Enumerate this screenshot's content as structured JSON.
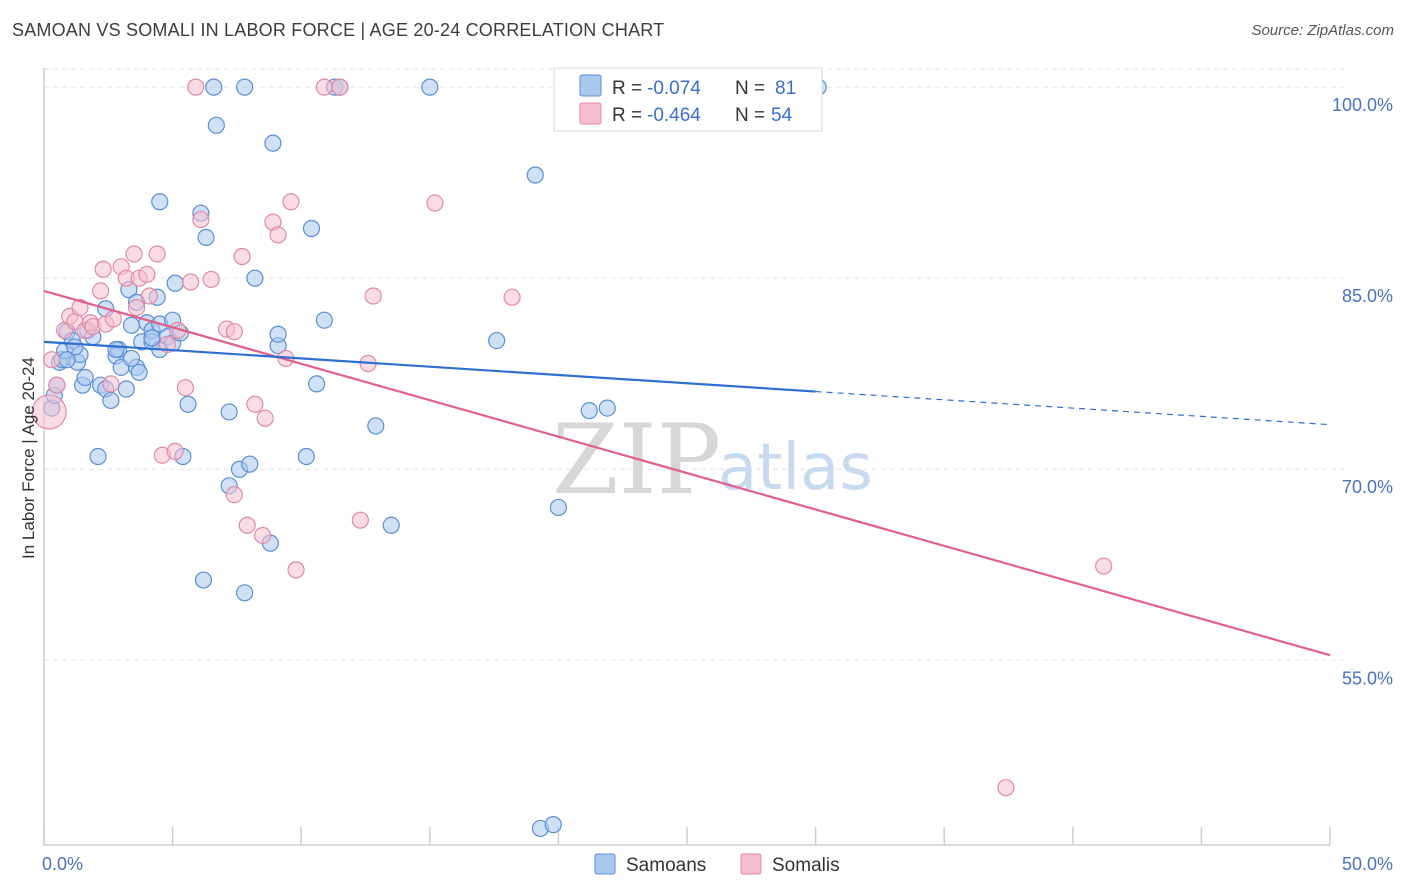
{
  "title": "SAMOAN VS SOMALI IN LABOR FORCE | AGE 20-24 CORRELATION CHART",
  "source": "Source: ZipAtlas.com",
  "watermark": {
    "zip": "ZIP",
    "atlas": "atlas"
  },
  "colors": {
    "samoans_fill": "#a9c8ee",
    "samoans_stroke": "#5b8ed6",
    "samoans_line": "#2f6fcf",
    "somalis_fill": "#f6bfd0",
    "somalis_stroke": "#e08aa6",
    "somalis_line": "#e0608e",
    "grid": "#e3e3e3",
    "axis_label": "#4a72c4"
  },
  "legend": {
    "rows": [
      {
        "r_label": "R = ",
        "r_value": "-0.074",
        "n_label": "N = ",
        "n_value": "81"
      },
      {
        "r_label": "R = ",
        "r_value": "-0.464",
        "n_label": "N = ",
        "n_value": "54"
      }
    ]
  },
  "bottom_legend": [
    "Samoans",
    "Somalis"
  ],
  "chart_data": {
    "type": "scatter",
    "title": "SAMOAN VS SOMALI IN LABOR FORCE | AGE 20-24 CORRELATION CHART",
    "xlabel": "",
    "ylabel": "In Labor Force | Age 20-24",
    "xlim": [
      0,
      50
    ],
    "ylim": [
      40.5,
      101.5
    ],
    "x_tick_labels": [
      "0.0%",
      "50.0%"
    ],
    "y_ticks": [
      55,
      70,
      85,
      100
    ],
    "y_tick_labels": [
      "55.0%",
      "70.0%",
      "85.0%",
      "100.0%"
    ],
    "grid": true,
    "legend_placement": "top-center",
    "series": [
      {
        "name": "Samoans",
        "r": -0.074,
        "n": 81,
        "trend": {
          "x0": 0,
          "y0": 80.0,
          "x1": 30,
          "y1": 76.1,
          "dash_to_x": 50,
          "dash_to_y": 73.5
        },
        "points": [
          [
            0.3,
            74.8
          ],
          [
            0.4,
            75.8
          ],
          [
            0.5,
            76.6
          ],
          [
            0.6,
            78.4
          ],
          [
            0.7,
            78.6
          ],
          [
            0.8,
            79.3
          ],
          [
            0.9,
            80.8
          ],
          [
            1.1,
            80.1
          ],
          [
            1.3,
            78.4
          ],
          [
            1.4,
            79.0
          ],
          [
            1.5,
            76.6
          ],
          [
            1.6,
            77.2
          ],
          [
            1.7,
            80.9
          ],
          [
            1.9,
            80.4
          ],
          [
            2.1,
            71.0
          ],
          [
            2.2,
            76.6
          ],
          [
            2.4,
            76.3
          ],
          [
            2.6,
            75.4
          ],
          [
            2.4,
            82.6
          ],
          [
            2.8,
            78.9
          ],
          [
            2.9,
            79.4
          ],
          [
            3.0,
            78.0
          ],
          [
            3.2,
            76.3
          ],
          [
            3.3,
            84.1
          ],
          [
            3.4,
            81.3
          ],
          [
            3.6,
            83.1
          ],
          [
            3.6,
            78.0
          ],
          [
            3.7,
            77.6
          ],
          [
            3.8,
            80.0
          ],
          [
            4.0,
            81.5
          ],
          [
            4.2,
            80.9
          ],
          [
            4.2,
            80.0
          ],
          [
            4.4,
            83.5
          ],
          [
            4.5,
            81.4
          ],
          [
            4.5,
            79.4
          ],
          [
            4.8,
            80.4
          ],
          [
            5.0,
            79.9
          ],
          [
            5.0,
            81.7
          ],
          [
            5.1,
            84.6
          ],
          [
            5.3,
            80.7
          ],
          [
            5.4,
            71.0
          ],
          [
            4.5,
            91.0
          ],
          [
            5.6,
            75.1
          ],
          [
            6.1,
            90.1
          ],
          [
            6.3,
            88.2
          ],
          [
            6.6,
            100.0
          ],
          [
            6.7,
            97.0
          ],
          [
            7.2,
            68.7
          ],
          [
            7.2,
            74.5
          ],
          [
            7.6,
            70.0
          ],
          [
            8.0,
            70.4
          ],
          [
            8.2,
            85.0
          ],
          [
            8.8,
            64.2
          ],
          [
            8.9,
            95.6
          ],
          [
            9.1,
            79.7
          ],
          [
            9.1,
            80.6
          ],
          [
            10.2,
            71.0
          ],
          [
            10.4,
            88.9
          ],
          [
            10.6,
            76.7
          ],
          [
            10.9,
            81.7
          ],
          [
            11.3,
            100.0
          ],
          [
            11.5,
            100.0
          ],
          [
            12.9,
            73.4
          ],
          [
            13.5,
            65.6
          ],
          [
            15.0,
            100.0
          ],
          [
            17.6,
            80.1
          ],
          [
            19.1,
            93.1
          ],
          [
            19.3,
            41.8
          ],
          [
            19.8,
            42.1
          ],
          [
            20.0,
            67.0
          ],
          [
            21.2,
            74.6
          ],
          [
            21.9,
            74.8
          ],
          [
            7.8,
            100.0
          ],
          [
            6.2,
            61.3
          ],
          [
            7.8,
            60.3
          ],
          [
            2.8,
            79.4
          ],
          [
            4.2,
            80.3
          ],
          [
            3.4,
            78.7
          ],
          [
            1.2,
            79.6
          ],
          [
            0.9,
            78.6
          ],
          [
            30.1,
            100.0
          ]
        ]
      },
      {
        "name": "Somalis",
        "r": -0.464,
        "n": 54,
        "trend": {
          "x0": 0,
          "y0": 84.0,
          "x1": 50,
          "y1": 55.4
        },
        "points": [
          [
            0.2,
            74.5
          ],
          [
            0.3,
            78.6
          ],
          [
            0.5,
            76.6
          ],
          [
            0.8,
            80.9
          ],
          [
            1.0,
            82.0
          ],
          [
            1.2,
            81.6
          ],
          [
            1.4,
            82.7
          ],
          [
            1.6,
            80.9
          ],
          [
            1.8,
            81.5
          ],
          [
            1.9,
            81.2
          ],
          [
            2.2,
            84.0
          ],
          [
            2.3,
            85.7
          ],
          [
            2.4,
            81.4
          ],
          [
            2.6,
            76.7
          ],
          [
            2.7,
            81.8
          ],
          [
            3.0,
            85.9
          ],
          [
            3.2,
            85.0
          ],
          [
            3.5,
            86.9
          ],
          [
            3.6,
            82.7
          ],
          [
            3.7,
            85.0
          ],
          [
            4.0,
            85.3
          ],
          [
            4.1,
            83.6
          ],
          [
            4.4,
            86.9
          ],
          [
            4.6,
            71.1
          ],
          [
            4.8,
            79.8
          ],
          [
            5.1,
            71.4
          ],
          [
            5.2,
            80.9
          ],
          [
            5.5,
            76.4
          ],
          [
            5.7,
            84.7
          ],
          [
            6.1,
            89.6
          ],
          [
            6.5,
            84.9
          ],
          [
            7.1,
            81.0
          ],
          [
            7.4,
            80.8
          ],
          [
            7.4,
            68.0
          ],
          [
            7.7,
            86.7
          ],
          [
            7.9,
            65.6
          ],
          [
            8.2,
            75.1
          ],
          [
            8.5,
            64.8
          ],
          [
            8.6,
            74.0
          ],
          [
            8.9,
            89.4
          ],
          [
            9.1,
            88.4
          ],
          [
            9.4,
            78.7
          ],
          [
            9.6,
            91.0
          ],
          [
            9.8,
            62.1
          ],
          [
            10.9,
            100.0
          ],
          [
            11.5,
            100.0
          ],
          [
            12.3,
            66.0
          ],
          [
            12.6,
            78.3
          ],
          [
            12.8,
            83.6
          ],
          [
            15.2,
            90.9
          ],
          [
            18.2,
            83.5
          ],
          [
            5.9,
            100.0
          ],
          [
            37.4,
            45.0
          ],
          [
            41.2,
            62.4
          ]
        ]
      }
    ]
  }
}
